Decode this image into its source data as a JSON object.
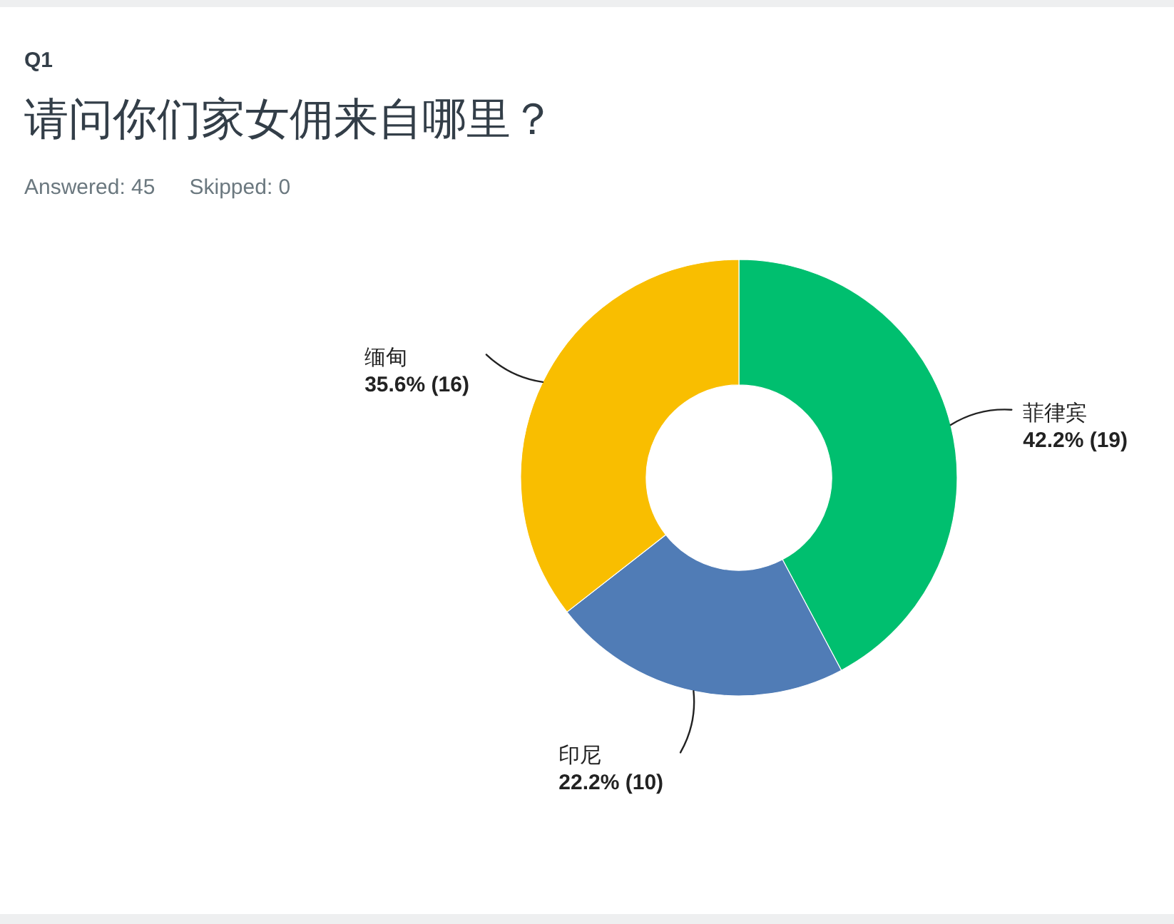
{
  "chart_data": {
    "type": "donut",
    "title": "Q1",
    "subtitle": "请问你们家女佣来自哪里？",
    "annotations": [
      "Answered: 45",
      "Skipped: 0"
    ],
    "categories": [
      "菲律宾",
      "印尼",
      "缅甸"
    ],
    "values": [
      19,
      10,
      16
    ],
    "colors": [
      "#00bf6f",
      "#507cb6",
      "#f9be00"
    ],
    "value_labels": [
      "42.2% (19)",
      "22.2% (10)",
      "35.6% (16)"
    ]
  }
}
